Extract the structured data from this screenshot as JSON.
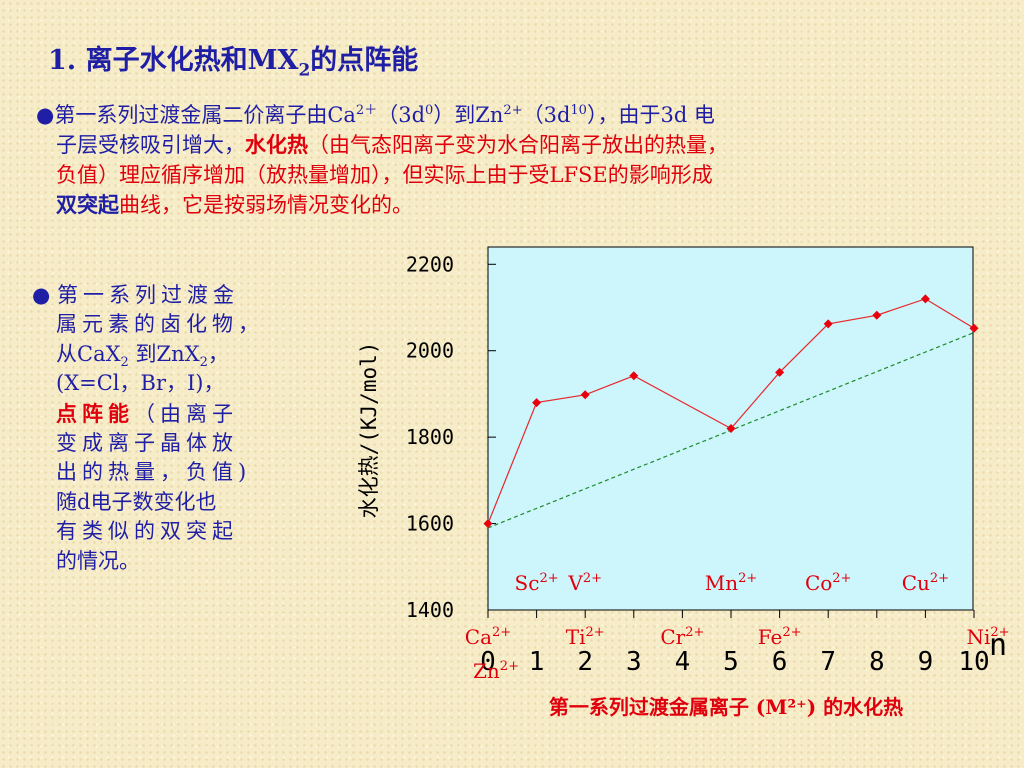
{
  "title": {
    "prefix": "1. 离子水化热和MX",
    "sub": "2",
    "suffix": "的点阵能"
  },
  "para1": {
    "bullet": "●",
    "l1_a": "第一系列过渡金属二价离子由Ca",
    "l1_sup1": "2＋",
    "l1_b": "（3d",
    "l1_sup2": "0",
    "l1_c": "）到Zn",
    "l1_sup3": "2+",
    "l1_d": "（3d",
    "l1_sup4": "10",
    "l1_e": "），由于3d 电",
    "l2_a": "子层受核吸引增大，",
    "l2_red": "水化热",
    "l2_b": "（由气态阳离子变为水合阳离子放出的热量，",
    "l3": "负值）理应循序增加（放热量增加），但实际上由于受LFSE的影响形成",
    "l4_bold": "双突起",
    "l4_red": "曲线，它是按弱场情况变化的。"
  },
  "para2": {
    "bullet": "●",
    "l1": "第一系列过渡金",
    "l2": "属元素的卤化物，",
    "l3_a": "从CaX",
    "l3_sub1": "2",
    "l3_b": " 到ZnX",
    "l3_sub2": "2",
    "l3_c": "，",
    "l4": "(X=Cl，Br，I)，",
    "l5_red": "点阵能",
    "l5_b": "（由离子",
    "l6": "变成离子晶体放",
    "l7": "出的热量，负值)",
    "l8": "随d电子数变化也",
    "l9": "有类似的双突起",
    "l10": "的情况。"
  },
  "chart_data": {
    "type": "line",
    "x": [
      0,
      1,
      2,
      3,
      4,
      5,
      6,
      7,
      8,
      9,
      10
    ],
    "series": [
      {
        "values": [
          1600,
          1880,
          1898,
          1942,
          1820,
          1950,
          2062,
          2082,
          2120,
          2052
        ],
        "x": [
          0,
          1,
          2,
          3,
          5,
          6,
          7,
          8,
          9,
          10
        ]
      }
    ],
    "trend_line": {
      "x": [
        0,
        10
      ],
      "y": [
        1590,
        2042
      ]
    },
    "x_ticks": [
      "0",
      "1",
      "2",
      "3",
      "4",
      "5",
      "6",
      "7",
      "8",
      "9",
      "10"
    ],
    "y_ticks": [
      "1400",
      "1600",
      "1800",
      "2000",
      "2200"
    ],
    "ylim": [
      1400,
      2240
    ],
    "xlim": [
      0,
      10
    ],
    "ylabel": "水化热/(KJ/mol)",
    "xlabel_n": "n",
    "caption": "第一系列过渡金属离子 (M²⁺) 的水化热",
    "ion_labels_top": [
      {
        "x": 1,
        "base": "Sc",
        "sup": "2+"
      },
      {
        "x": 2,
        "base": "V",
        "sup": "2+"
      },
      {
        "x": 5,
        "base": "Mn",
        "sup": "2+"
      },
      {
        "x": 7,
        "base": "Co",
        "sup": "2+"
      },
      {
        "x": 9,
        "base": "Cu",
        "sup": "2+"
      }
    ],
    "ion_labels_bottom": [
      {
        "x": 0,
        "base": "Ca",
        "sup": "2+"
      },
      {
        "x": 2,
        "base": "Ti",
        "sup": "2+"
      },
      {
        "x": 4,
        "base": "Cr",
        "sup": "2+"
      },
      {
        "x": 6,
        "base": "Fe",
        "sup": "2+"
      },
      {
        "x": 8,
        "base": "Ni",
        "sup": "2+"
      },
      {
        "x": 10,
        "base": "Zn",
        "sup": "2+"
      }
    ],
    "colors": {
      "plot_bg": "#ccf6fb",
      "line": "#e8262b",
      "marker": "#e8000d",
      "trend": "#1c8a2a",
      "ion_label": "#e0000d"
    },
    "grid": false
  }
}
